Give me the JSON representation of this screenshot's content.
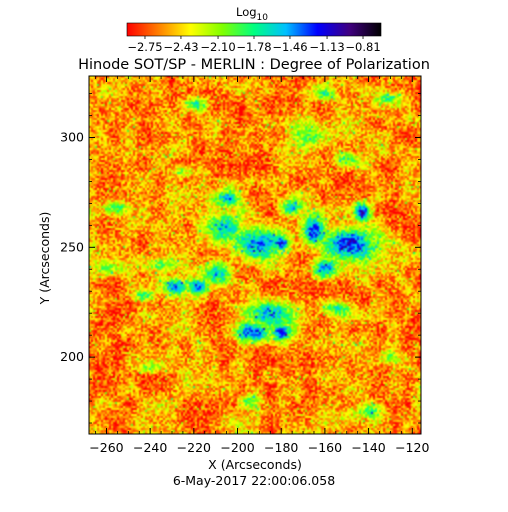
{
  "chart_data": {
    "type": "heatmap",
    "title": "Hinode SOT/SP - MERLIN : Degree of Polarization",
    "xlabel": "X (Arcseconds)",
    "ylabel": "Y (Arcseconds)",
    "xlim": [
      -268,
      -116
    ],
    "ylim": [
      165,
      328
    ],
    "xticks": [
      -260,
      -240,
      -220,
      -200,
      -180,
      -160,
      -140,
      -120
    ],
    "xtick_labels": [
      "−260",
      "−240",
      "−220",
      "−200",
      "−180",
      "−160",
      "−140",
      "−120"
    ],
    "yticks": [
      200,
      250,
      300
    ],
    "ytick_labels": [
      "200",
      "250",
      "300"
    ],
    "timestamp": "6-May-2017 22:00:06.058",
    "colorbar": {
      "label": "Log",
      "label_sub": "10",
      "range": [
        -2.91,
        -0.65
      ],
      "ticks": [
        -2.75,
        -2.43,
        -2.1,
        -1.78,
        -1.46,
        -1.13,
        -0.81
      ],
      "tick_labels": [
        "−2.75",
        "−2.43",
        "−2.10",
        "−1.78",
        "−1.46",
        "−1.13",
        "−0.81"
      ],
      "colormap": [
        "#ff0000",
        "#ff8000",
        "#ffff00",
        "#80ff00",
        "#00ff80",
        "#00c0ff",
        "#0000ff",
        "#400080",
        "#000000"
      ]
    },
    "map": {
      "background_level": -2.6,
      "network_regions": [
        {
          "x": -190,
          "y": 252,
          "rx": 16,
          "ry": 9,
          "level": -1.5
        },
        {
          "x": -205,
          "y": 258,
          "rx": 9,
          "ry": 9,
          "level": -1.6
        },
        {
          "x": -210,
          "y": 238,
          "rx": 7,
          "ry": 6,
          "level": -1.4
        },
        {
          "x": -218,
          "y": 232,
          "rx": 6,
          "ry": 4,
          "level": -1.1
        },
        {
          "x": -180,
          "y": 252,
          "rx": 5,
          "ry": 4,
          "level": -1.2
        },
        {
          "x": -148,
          "y": 252,
          "rx": 12,
          "ry": 8,
          "level": -1.15
        },
        {
          "x": -148,
          "y": 253,
          "rx": 4,
          "ry": 3,
          "level": -0.8
        },
        {
          "x": -165,
          "y": 258,
          "rx": 6,
          "ry": 7,
          "level": -1.3
        },
        {
          "x": -143,
          "y": 266,
          "rx": 4,
          "ry": 5,
          "level": -1.3
        },
        {
          "x": -185,
          "y": 220,
          "rx": 12,
          "ry": 7,
          "level": -1.5
        },
        {
          "x": -193,
          "y": 211,
          "rx": 8,
          "ry": 5,
          "level": -1.3
        },
        {
          "x": -180,
          "y": 211,
          "rx": 5,
          "ry": 4,
          "level": -1.4
        },
        {
          "x": -205,
          "y": 272,
          "rx": 8,
          "ry": 5,
          "level": -1.7
        },
        {
          "x": -175,
          "y": 268,
          "rx": 5,
          "ry": 4,
          "level": -1.5
        },
        {
          "x": -228,
          "y": 232,
          "rx": 6,
          "ry": 4,
          "level": -1.4
        },
        {
          "x": -243,
          "y": 228,
          "rx": 6,
          "ry": 3,
          "level": -1.7
        },
        {
          "x": -258,
          "y": 240,
          "rx": 8,
          "ry": 4,
          "level": -2.0
        },
        {
          "x": -235,
          "y": 242,
          "rx": 10,
          "ry": 3,
          "level": -2.0
        },
        {
          "x": -160,
          "y": 240,
          "rx": 8,
          "ry": 5,
          "level": -1.6
        },
        {
          "x": -155,
          "y": 222,
          "rx": 8,
          "ry": 4,
          "level": -1.8
        },
        {
          "x": -170,
          "y": 300,
          "rx": 10,
          "ry": 8,
          "level": -2.0
        },
        {
          "x": -150,
          "y": 290,
          "rx": 6,
          "ry": 4,
          "level": -1.8
        },
        {
          "x": -218,
          "y": 315,
          "rx": 5,
          "ry": 3,
          "level": -1.7
        },
        {
          "x": -130,
          "y": 318,
          "rx": 6,
          "ry": 3,
          "level": -1.8
        },
        {
          "x": -255,
          "y": 268,
          "rx": 5,
          "ry": 3,
          "level": -1.8
        },
        {
          "x": -240,
          "y": 195,
          "rx": 6,
          "ry": 3,
          "level": -1.9
        },
        {
          "x": -140,
          "y": 175,
          "rx": 6,
          "ry": 4,
          "level": -1.8
        },
        {
          "x": -225,
          "y": 285,
          "rx": 5,
          "ry": 3,
          "level": -1.9
        },
        {
          "x": -130,
          "y": 200,
          "rx": 5,
          "ry": 4,
          "level": -1.9
        },
        {
          "x": -195,
          "y": 180,
          "rx": 5,
          "ry": 3,
          "level": -1.9
        },
        {
          "x": -160,
          "y": 320,
          "rx": 6,
          "ry": 3,
          "level": -1.9
        }
      ]
    }
  }
}
